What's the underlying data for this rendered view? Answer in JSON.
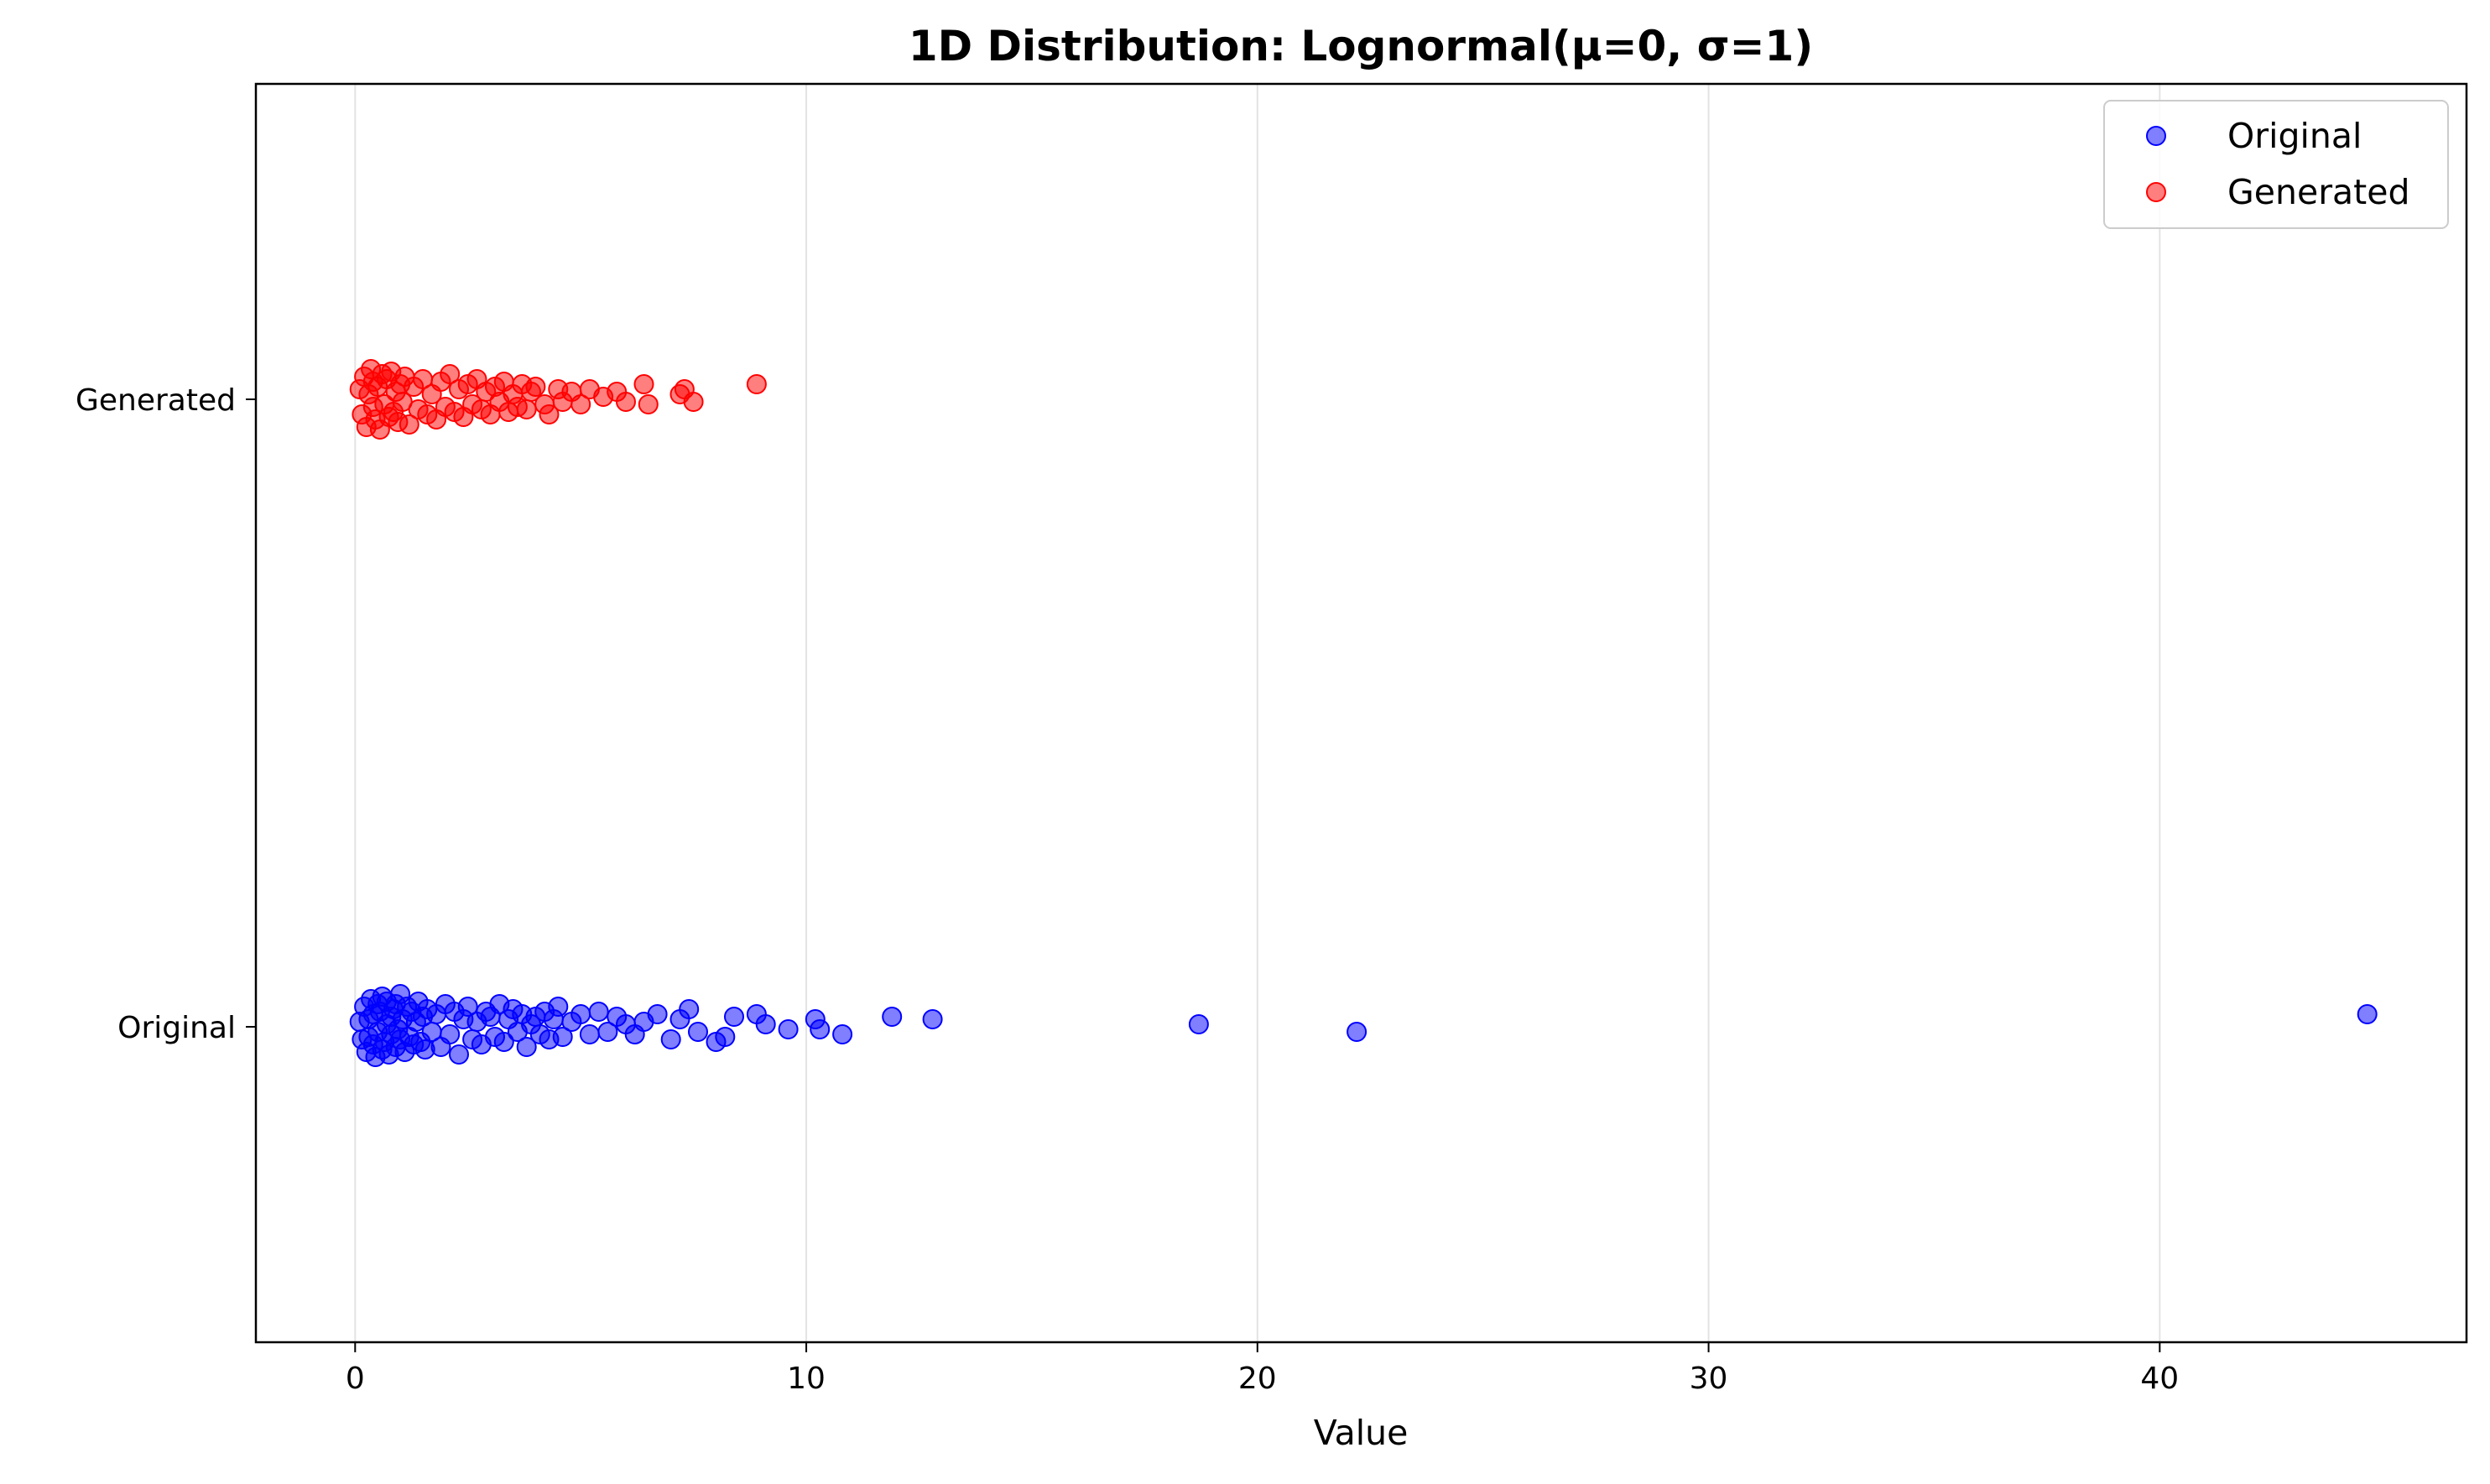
{
  "chart_data": {
    "type": "scatter",
    "title": "1D Distribution: Lognormal(μ=0, σ=1)",
    "xlabel": "Value",
    "ylabel": "",
    "xlim": [
      -2.2,
      46.8
    ],
    "xticks": [
      0,
      10,
      20,
      30,
      40
    ],
    "grid": "vertical lines only",
    "legend_placement": "top-right",
    "categories": [
      "Original",
      "Generated"
    ],
    "series": [
      {
        "name": "Original",
        "category": "Original",
        "color": "#0000ff",
        "x": [
          0.1,
          0.15,
          0.2,
          0.25,
          0.3,
          0.3,
          0.35,
          0.4,
          0.4,
          0.45,
          0.5,
          0.5,
          0.55,
          0.6,
          0.6,
          0.65,
          0.7,
          0.7,
          0.75,
          0.8,
          0.8,
          0.85,
          0.9,
          0.9,
          0.95,
          1.0,
          1.0,
          1.05,
          1.1,
          1.15,
          1.2,
          1.25,
          1.3,
          1.35,
          1.4,
          1.45,
          1.5,
          1.55,
          1.6,
          1.7,
          1.8,
          1.9,
          2.0,
          2.1,
          2.2,
          2.3,
          2.4,
          2.5,
          2.6,
          2.7,
          2.8,
          2.9,
          3.0,
          3.1,
          3.2,
          3.3,
          3.4,
          3.5,
          3.6,
          3.7,
          3.8,
          3.9,
          4.0,
          4.1,
          4.2,
          4.3,
          4.4,
          4.5,
          4.6,
          4.8,
          5.0,
          5.2,
          5.4,
          5.6,
          5.8,
          6.0,
          6.2,
          6.4,
          6.7,
          7.0,
          7.2,
          7.4,
          7.6,
          8.0,
          8.2,
          8.4,
          8.9,
          9.1,
          9.6,
          10.2,
          10.3,
          10.8,
          11.9,
          12.8,
          18.7,
          22.2,
          44.6
        ],
        "jitter": [
          0.02,
          -0.05,
          0.08,
          -0.1,
          0.03,
          -0.04,
          0.11,
          -0.07,
          0.05,
          -0.12,
          0.09,
          -0.02,
          0.06,
          -0.09,
          0.12,
          -0.06,
          0.01,
          0.1,
          -0.11,
          0.04,
          -0.03,
          0.07,
          -0.08,
          0.09,
          -0.01,
          0.13,
          -0.05,
          0.03,
          -0.1,
          0.08,
          -0.04,
          0.06,
          -0.07,
          0.02,
          0.1,
          -0.06,
          0.04,
          -0.09,
          0.07,
          -0.02,
          0.05,
          -0.08,
          0.09,
          -0.03,
          0.06,
          -0.11,
          0.03,
          0.08,
          -0.05,
          0.02,
          -0.07,
          0.06,
          0.04,
          -0.04,
          0.09,
          -0.06,
          0.03,
          0.07,
          -0.02,
          0.05,
          -0.08,
          0.01,
          0.04,
          -0.03,
          0.06,
          -0.05,
          0.03,
          0.08,
          -0.04,
          0.02,
          0.05,
          -0.03,
          0.06,
          -0.02,
          0.04,
          0.01,
          -0.03,
          0.02,
          0.05,
          -0.05,
          0.03,
          0.07,
          -0.02,
          -0.06,
          -0.04,
          0.04,
          0.05,
          0.01,
          -0.01,
          0.03,
          -0.01,
          -0.03,
          0.04,
          0.03,
          0.01,
          -0.02,
          0.05
        ]
      },
      {
        "name": "Generated",
        "category": "Generated",
        "color": "#ff0000",
        "x": [
          0.1,
          0.15,
          0.2,
          0.25,
          0.3,
          0.35,
          0.4,
          0.4,
          0.45,
          0.5,
          0.55,
          0.6,
          0.65,
          0.7,
          0.75,
          0.8,
          0.85,
          0.9,
          0.95,
          1.0,
          1.05,
          1.1,
          1.2,
          1.3,
          1.4,
          1.5,
          1.6,
          1.7,
          1.8,
          1.9,
          2.0,
          2.1,
          2.2,
          2.3,
          2.4,
          2.5,
          2.6,
          2.7,
          2.8,
          2.9,
          3.0,
          3.1,
          3.2,
          3.3,
          3.4,
          3.5,
          3.6,
          3.7,
          3.8,
          3.9,
          4.0,
          4.2,
          4.3,
          4.5,
          4.6,
          4.8,
          5.0,
          5.2,
          5.5,
          5.8,
          6.0,
          6.4,
          6.5,
          7.2,
          7.3,
          7.5,
          8.9
        ],
        "jitter": [
          0.04,
          -0.06,
          0.09,
          -0.11,
          0.02,
          0.12,
          -0.03,
          0.07,
          -0.08,
          0.05,
          -0.12,
          0.1,
          -0.02,
          0.08,
          -0.07,
          0.11,
          -0.05,
          0.03,
          -0.09,
          0.06,
          -0.01,
          0.09,
          -0.1,
          0.05,
          -0.04,
          0.08,
          -0.06,
          0.02,
          -0.08,
          0.07,
          -0.03,
          0.1,
          -0.05,
          0.04,
          -0.07,
          0.06,
          -0.02,
          0.08,
          -0.04,
          0.03,
          -0.06,
          0.05,
          -0.01,
          0.07,
          -0.05,
          0.02,
          -0.03,
          0.06,
          -0.04,
          0.03,
          0.05,
          -0.02,
          -0.06,
          0.04,
          -0.01,
          0.03,
          -0.02,
          0.04,
          0.01,
          0.03,
          -0.01,
          0.06,
          -0.02,
          0.02,
          0.04,
          -0.01,
          0.06
        ]
      }
    ]
  }
}
